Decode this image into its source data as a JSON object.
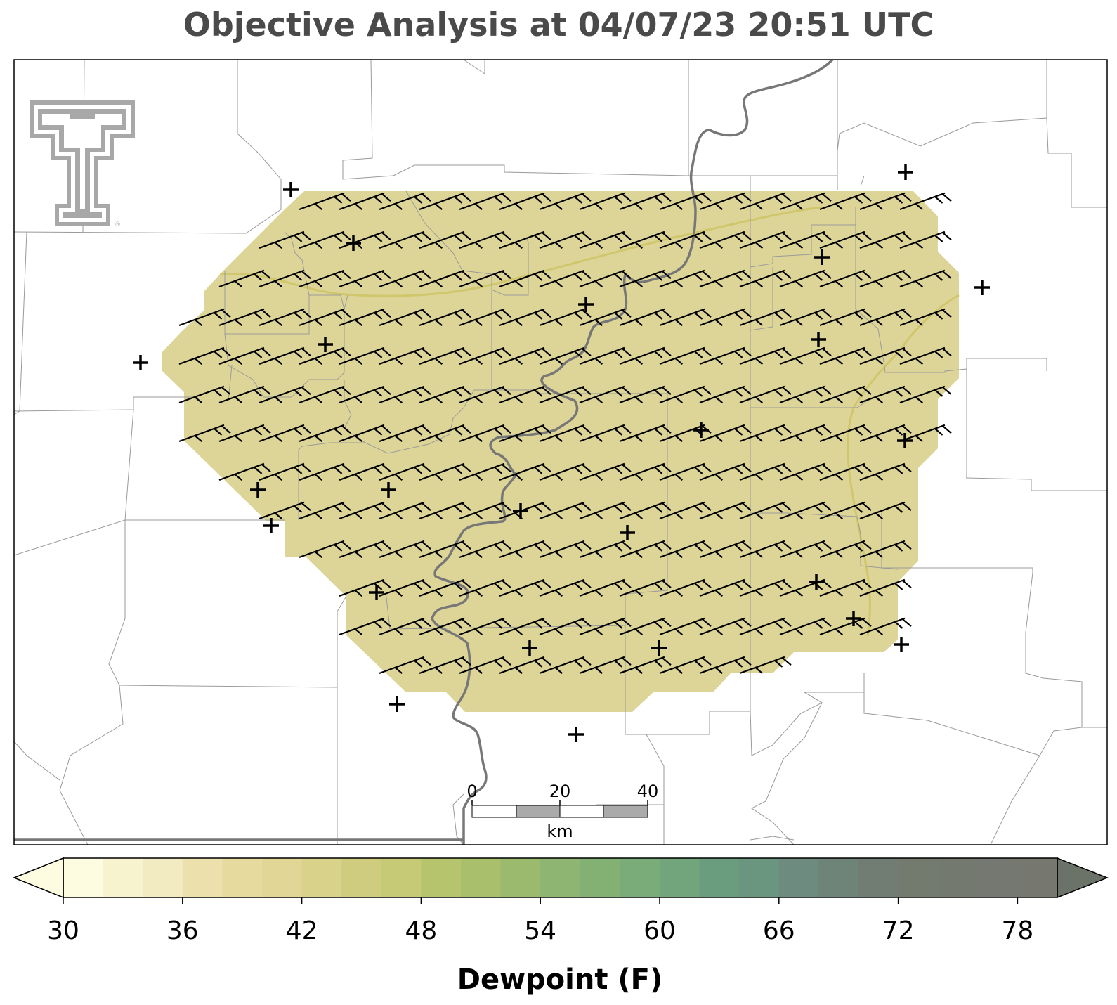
{
  "title": "Objective Analysis at 04/07/23 20:51 UTC",
  "logo": {
    "name": "double-t-logo",
    "registered_mark": "®"
  },
  "scale_bar": {
    "labels": [
      "0",
      "20",
      "40"
    ],
    "unit": "km"
  },
  "colorbar": {
    "label": "Dewpoint (F)",
    "ticks": [
      "30",
      "36",
      "42",
      "48",
      "54",
      "60",
      "66",
      "72",
      "78"
    ],
    "min": 30,
    "max": 80,
    "step": 2,
    "colors": [
      "#fdfbe0",
      "#f8f3cf",
      "#f2eac0",
      "#ece1ad",
      "#e6da9f",
      "#e1d695",
      "#d9d28a",
      "#cfcc7f",
      "#c6c976",
      "#b7c46e",
      "#a9bf6b",
      "#9bba6e",
      "#8fb572",
      "#83b174",
      "#7aac79",
      "#72a57c",
      "#6a9d7d",
      "#6a957f",
      "#6d8b7e",
      "#6f8478",
      "#717d73",
      "#737b6f",
      "#747970",
      "#757870",
      "#767870"
    ],
    "under_color": "#fdfbe0",
    "over_color": "#6b7267"
  },
  "field": {
    "fill_color": "#ddd597",
    "contour_color": "#cfc66a"
  },
  "wind": {
    "barb_color": "#000000",
    "station_marker": "plus"
  }
}
